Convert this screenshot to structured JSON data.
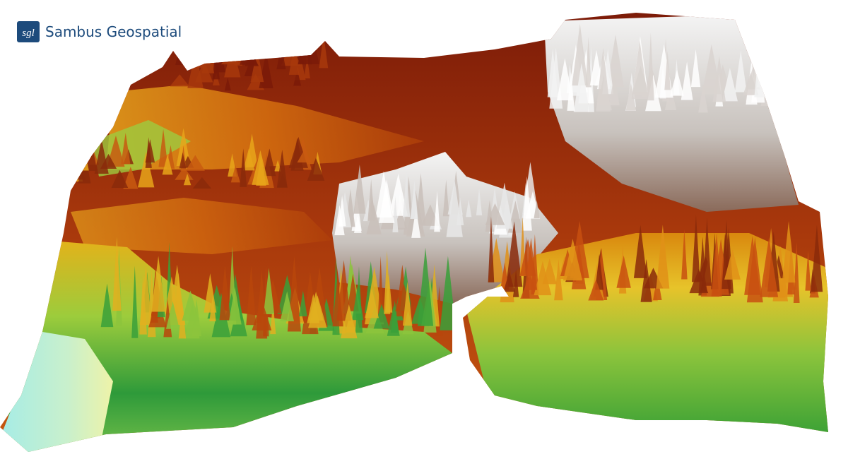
{
  "logo": {
    "mark": "sgl",
    "name": "Sambus Geospatial"
  }
}
